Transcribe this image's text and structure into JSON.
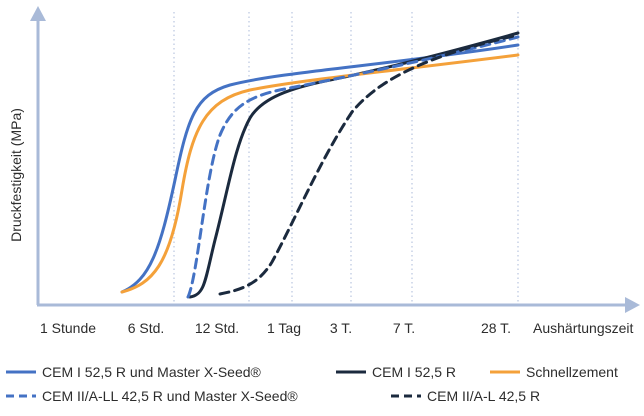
{
  "chart_data": {
    "type": "line",
    "title": "",
    "xlabel": "Aushärtungszeit",
    "ylabel": "Druckfestigkeit (MPa)",
    "x_ticks": [
      "1 Stunde",
      "6 Std.",
      "12 Std.",
      "1 Tag",
      "3 T.",
      "7 T.",
      "28 T."
    ],
    "x_scale": "categorical time milestones",
    "y_ticks": [],
    "ylim": [
      0,
      100
    ],
    "grid": "vertical dotted lines at x ticks",
    "legend": "bottom",
    "series": [
      {
        "name": "CEM I 52,5 R und Master X-Seed®",
        "color": "#4472c4",
        "dash": "solid",
        "points": [
          [
            "1 Stunde",
            3
          ],
          [
            "3 Std.",
            20
          ],
          [
            "5 Std.",
            70
          ],
          [
            "6 Std.",
            85
          ],
          [
            "12 Std.",
            88
          ],
          [
            "1 Tag",
            89
          ],
          [
            "3 T.",
            90
          ],
          [
            "7 T.",
            92
          ],
          [
            "28 T.",
            97
          ]
        ]
      },
      {
        "name": "CEM I 52,5 R",
        "color": "#1b2a3e",
        "dash": "solid",
        "points": [
          [
            "12 Std.",
            1
          ],
          [
            "16 Std.",
            40
          ],
          [
            "1 Tag",
            68
          ],
          [
            "3 T.",
            82
          ],
          [
            "7 T.",
            94
          ],
          [
            "28 T.",
            102
          ]
        ]
      },
      {
        "name": "Schnellzement",
        "color": "#f4a13a",
        "dash": "solid",
        "points": [
          [
            "1 Stunde",
            2
          ],
          [
            "3 Std.",
            20
          ],
          [
            "5 Std.",
            58
          ],
          [
            "6 Std.",
            78
          ],
          [
            "12 Std.",
            86
          ],
          [
            "1 Tag",
            88
          ],
          [
            "3 T.",
            89
          ],
          [
            "7 T.",
            91
          ],
          [
            "28 T.",
            94
          ]
        ]
      },
      {
        "name": "CEM II/A-LL 42,5 R und Master X-Seed®",
        "color": "#4472c4",
        "dash": "dashed",
        "points": [
          [
            "12 Std.",
            2
          ],
          [
            "14 Std.",
            60
          ],
          [
            "1 Tag",
            80
          ],
          [
            "3 T.",
            88
          ],
          [
            "7 T.",
            95
          ],
          [
            "28 T.",
            100
          ]
        ]
      },
      {
        "name": "CEM II/A-L 42,5 R",
        "color": "#1b2a3e",
        "dash": "dashed",
        "points": [
          [
            "12 Std.",
            3
          ],
          [
            "1 Tag",
            12
          ],
          [
            "2 T.",
            55
          ],
          [
            "3 T.",
            80
          ],
          [
            "7 T.",
            93
          ],
          [
            "28 T.",
            101
          ]
        ]
      }
    ],
    "legend_entries": [
      {
        "label": "CEM I 52,5 R und Master X-Seed®",
        "color": "#4472c4",
        "dash": "solid"
      },
      {
        "label": "CEM I 52,5 R",
        "color": "#1b2a3e",
        "dash": "solid"
      },
      {
        "label": "Schnellzement",
        "color": "#f4a13a",
        "dash": "solid"
      },
      {
        "label": "CEM II/A-LL 42,5 R und Master X-Seed®",
        "color": "#4472c4",
        "dash": "dashed"
      },
      {
        "label": "CEM II/A-L 42,5 R",
        "color": "#1b2a3e",
        "dash": "dashed"
      }
    ],
    "axis_color": "#a9bad8"
  }
}
